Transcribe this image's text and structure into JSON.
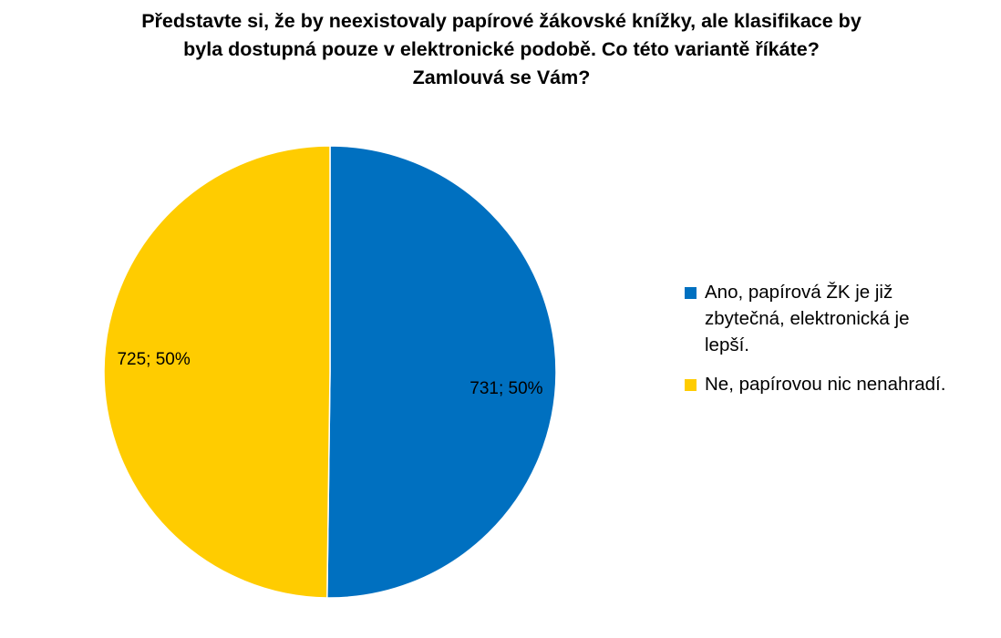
{
  "chart_data": {
    "type": "pie",
    "title_lines": [
      "Představte si, že by neexistovaly papírové žákovské knížky, ale klasifikace by",
      "byla dostupná pouze v elektronické podobě. Co této variantě říkáte?",
      "Zamlouvá se Vám?"
    ],
    "categories": [
      "Ano, papírová ŽK je již zbytečná, elektronická je lepší.",
      "Ne, papírovou nic nenahradí."
    ],
    "values": [
      731,
      725
    ],
    "percent_labels": [
      "50%",
      "50%"
    ],
    "data_labels": [
      "731; 50%",
      "725; 50%"
    ],
    "colors": [
      "#0070C0",
      "#FFCC00"
    ],
    "legend_position": "right",
    "start_angle": "12 o'clock",
    "direction": "clockwise"
  },
  "legend": {
    "items": [
      {
        "lines": [
          "Ano, papírová ŽK je již",
          "zbytečná, elektronická je",
          "lepší."
        ],
        "color": "#0070C0"
      },
      {
        "lines": [
          "Ne, papírovou nic nenahradí."
        ],
        "color": "#FFCC00"
      }
    ]
  }
}
